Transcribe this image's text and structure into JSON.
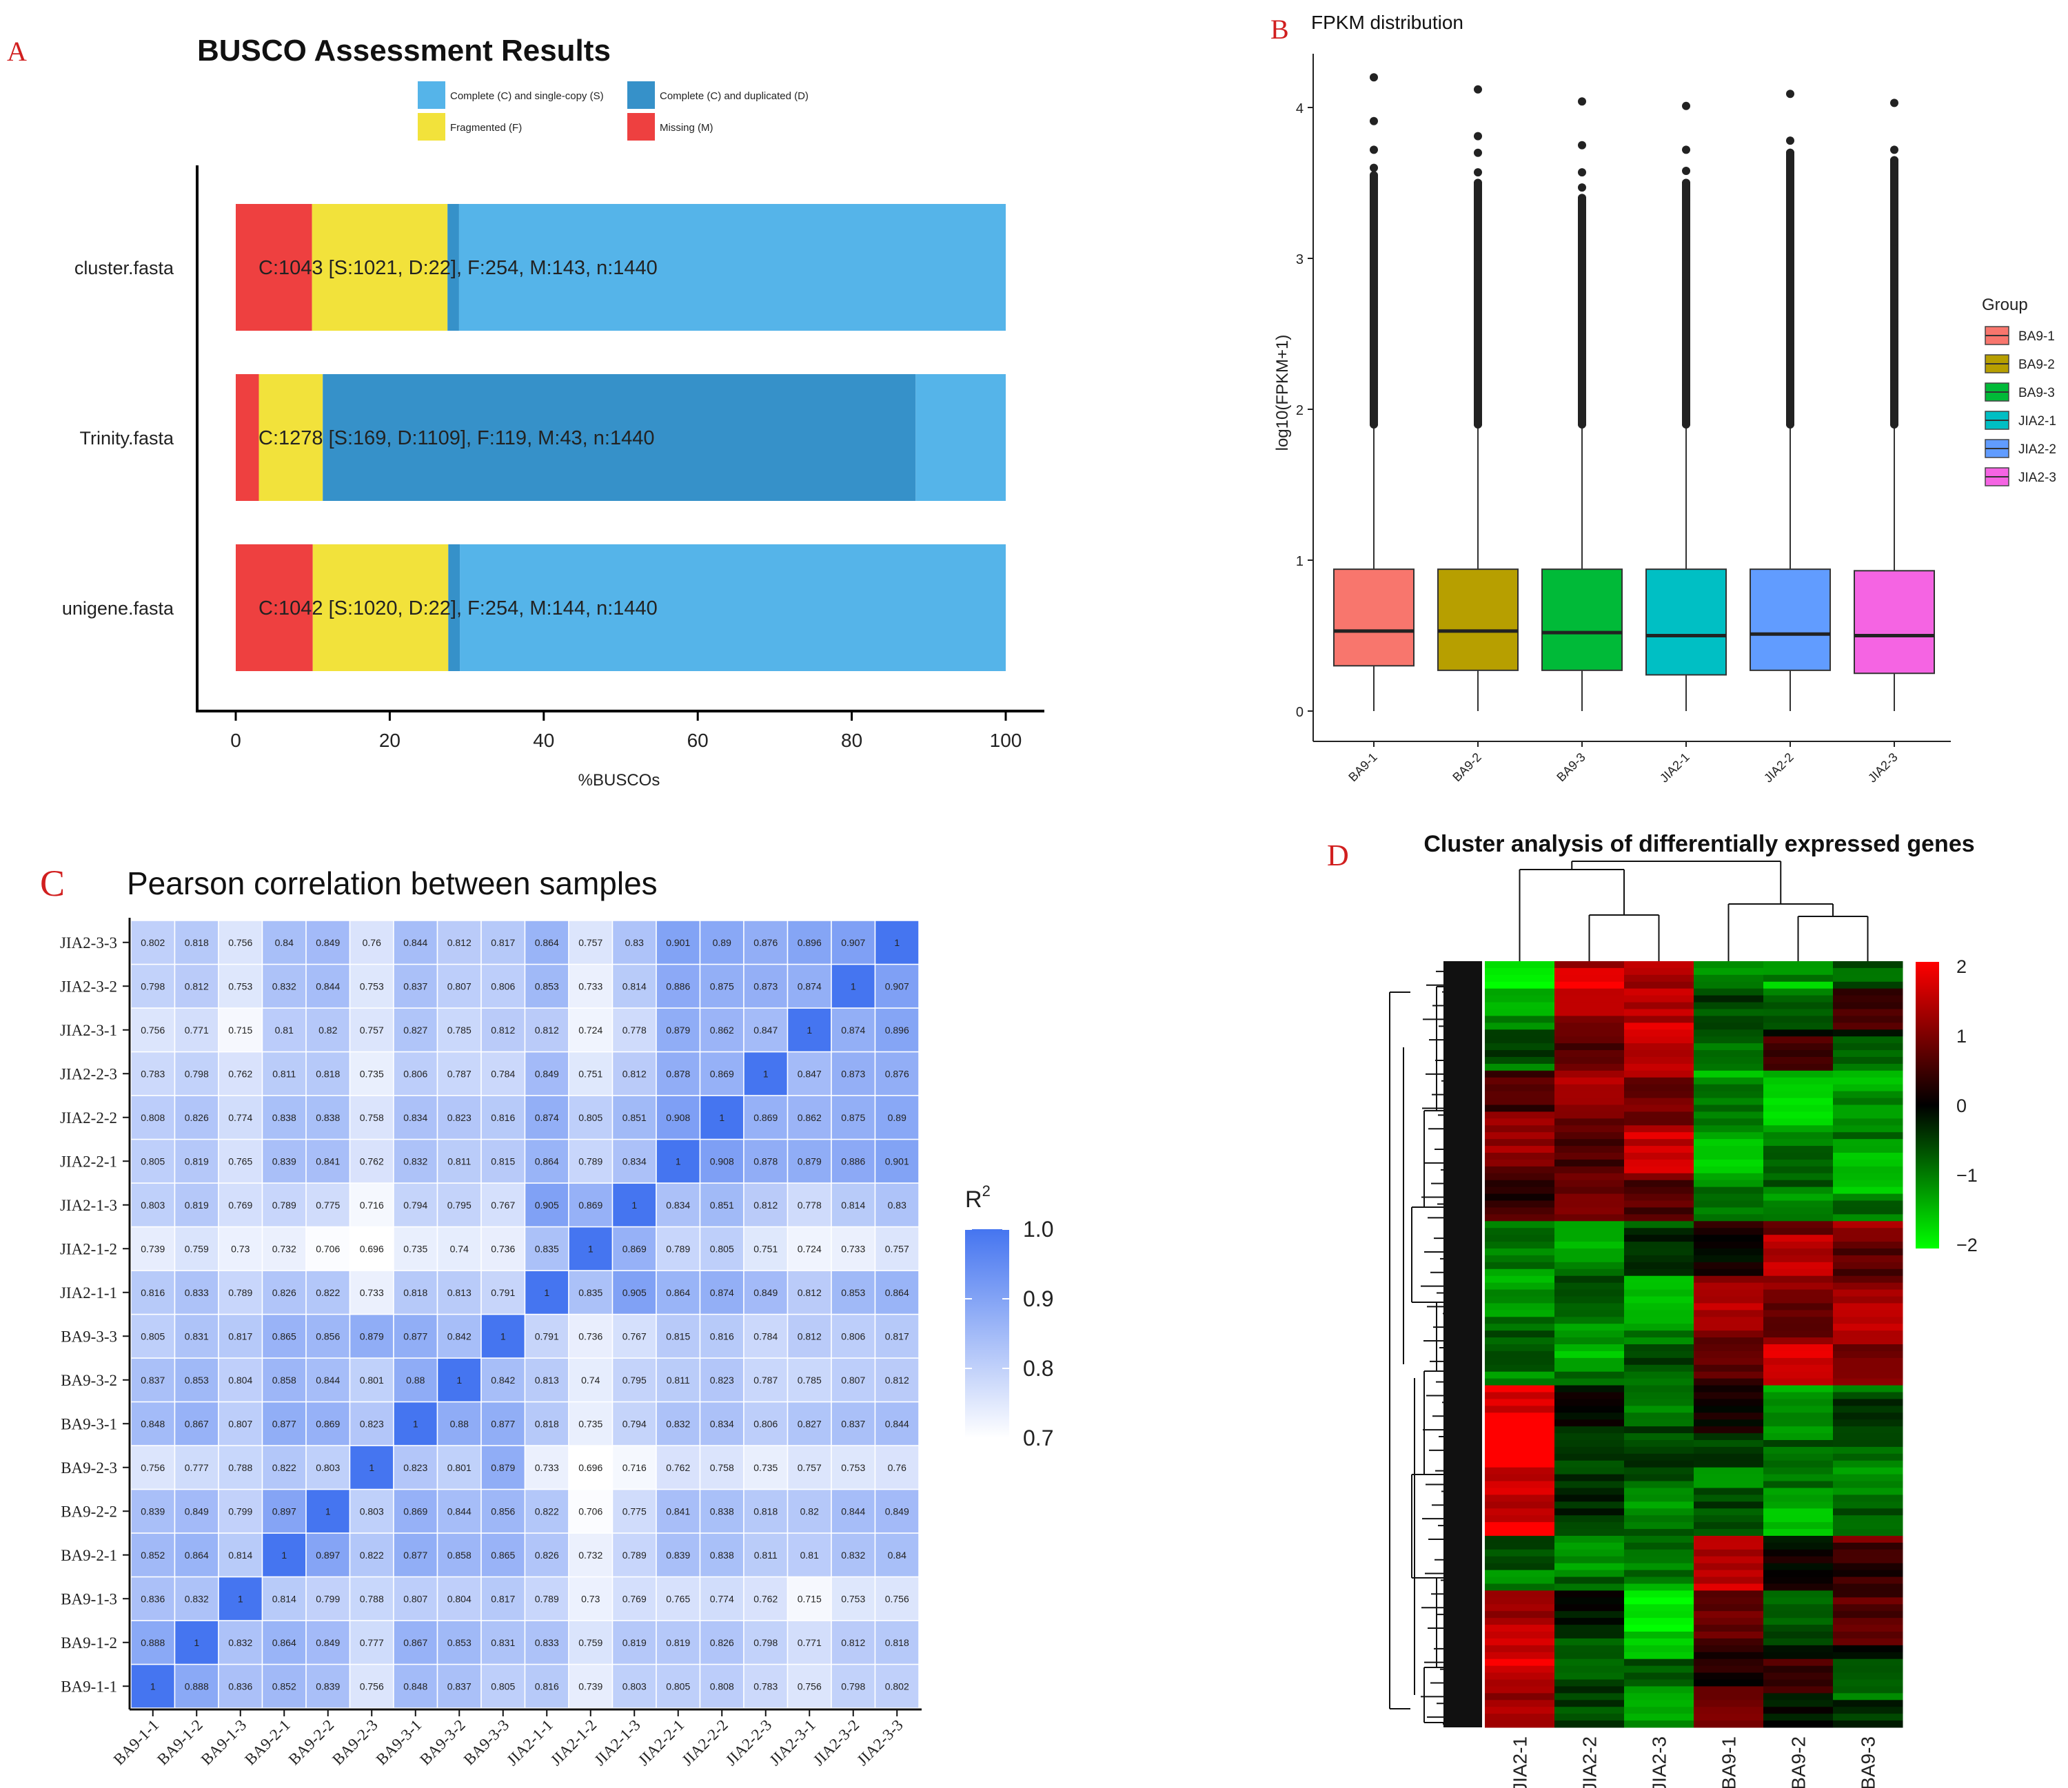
{
  "panels": {
    "A": "A",
    "B": "B",
    "C": "C",
    "D": "D"
  },
  "colors": {
    "panel_letter": "#d11f1f",
    "busco_single": "#55b4e9",
    "busco_duplicated": "#3691c9",
    "busco_fragmented": "#f2e23b",
    "busco_missing": "#ee4040",
    "group": [
      "#f8766d",
      "#b79f00",
      "#00ba38",
      "#00bfc4",
      "#619cff",
      "#f564e3"
    ],
    "corr_low": "#ffffff",
    "corr_high": "#4575f0",
    "heat_low": "#00ff00",
    "heat_mid": "#000000",
    "heat_high": "#ff0000"
  },
  "chart_data": [
    {
      "id": "A",
      "type": "bar",
      "stacked": true,
      "orientation": "horizontal",
      "title": "BUSCO Assessment Results",
      "xlabel": "%BUSCOs",
      "ylabel": "",
      "xlim": [
        0,
        100
      ],
      "xticks": [
        0,
        20,
        40,
        60,
        80,
        100
      ],
      "categories": [
        "cluster.fasta",
        "Trinity.fasta",
        "unigene.fasta"
      ],
      "series": [
        {
          "name": "Missing (M)",
          "values": [
            9.9,
            3.0,
            10.0
          ]
        },
        {
          "name": "Fragmented (F)",
          "values": [
            17.6,
            8.3,
            17.6
          ]
        },
        {
          "name": "Complete (C) and duplicated (D)",
          "values": [
            1.5,
            77.0,
            1.5
          ]
        },
        {
          "name": "Complete (C) and single-copy (S)",
          "values": [
            71.0,
            11.7,
            70.9
          ]
        }
      ],
      "legend_order": [
        "Complete (C) and single-copy (S)",
        "Complete (C) and duplicated (D)",
        "Fragmented (F)",
        "Missing (M)"
      ],
      "legend_position": "top",
      "bar_labels": [
        "C:1043 [S:1021, D:22], F:254, M:143, n:1440",
        "C:1278 [S:169, D:1109], F:119, M:43, n:1440",
        "C:1042 [S:1020, D:22], F:254, M:144, n:1440"
      ]
    },
    {
      "id": "B",
      "type": "boxplot",
      "title": "FPKM distribution",
      "xlabel": "",
      "ylabel": "log10(FPKM+1)",
      "ylim": [
        0,
        4.3
      ],
      "yticks": [
        0,
        1,
        2,
        3,
        4
      ],
      "legend_title": "Group",
      "legend_position": "right",
      "categories": [
        "BA9-1",
        "BA9-2",
        "BA9-3",
        "JIA2-1",
        "JIA2-2",
        "JIA2-3"
      ],
      "boxes": [
        {
          "q1": 0.3,
          "median": 0.53,
          "q3": 0.94,
          "whisker_low": 0,
          "whisker_high": 1.9,
          "outliers_max": 3.55,
          "outliers_sparse": [
            3.6,
            3.72,
            3.91,
            4.2
          ]
        },
        {
          "q1": 0.27,
          "median": 0.53,
          "q3": 0.94,
          "whisker_low": 0,
          "whisker_high": 1.9,
          "outliers_max": 3.5,
          "outliers_sparse": [
            3.57,
            3.7,
            3.81,
            4.12
          ]
        },
        {
          "q1": 0.27,
          "median": 0.52,
          "q3": 0.94,
          "whisker_low": 0,
          "whisker_high": 1.9,
          "outliers_max": 3.4,
          "outliers_sparse": [
            3.47,
            3.57,
            3.75,
            4.04
          ]
        },
        {
          "q1": 0.24,
          "median": 0.5,
          "q3": 0.94,
          "whisker_low": 0,
          "whisker_high": 1.9,
          "outliers_max": 3.5,
          "outliers_sparse": [
            3.58,
            3.72,
            4.01
          ]
        },
        {
          "q1": 0.27,
          "median": 0.51,
          "q3": 0.94,
          "whisker_low": 0,
          "whisker_high": 1.9,
          "outliers_max": 3.7,
          "outliers_sparse": [
            3.78,
            4.09
          ]
        },
        {
          "q1": 0.25,
          "median": 0.5,
          "q3": 0.93,
          "whisker_low": 0,
          "whisker_high": 1.9,
          "outliers_max": 3.65,
          "outliers_sparse": [
            3.72,
            4.03
          ]
        }
      ]
    },
    {
      "id": "C",
      "type": "heatmap",
      "title": "Pearson correlation between samples",
      "legend_title": "R",
      "legend_title_sup": "2",
      "legend_ticks": [
        "1.0",
        "0.9",
        "0.8",
        "0.7"
      ],
      "value_range": [
        0.7,
        1.0
      ],
      "samples": [
        "BA9-1-1",
        "BA9-1-2",
        "BA9-1-3",
        "BA9-2-1",
        "BA9-2-2",
        "BA9-2-3",
        "BA9-3-1",
        "BA9-3-2",
        "BA9-3-3",
        "JIA2-1-1",
        "JIA2-1-2",
        "JIA2-1-3",
        "JIA2-2-1",
        "JIA2-2-2",
        "JIA2-2-3",
        "JIA2-3-1",
        "JIA2-3-2",
        "JIA2-3-3"
      ],
      "matrix": [
        [
          "1",
          "0.888",
          "0.836",
          "0.852",
          "0.839",
          "0.756",
          "0.848",
          "0.837",
          "0.805",
          "0.816",
          "0.739",
          "0.803",
          "0.805",
          "0.808",
          "0.783",
          "0.756",
          "0.798",
          "0.802"
        ],
        [
          "0.888",
          "1",
          "0.832",
          "0.864",
          "0.849",
          "0.777",
          "0.867",
          "0.853",
          "0.831",
          "0.833",
          "0.759",
          "0.819",
          "0.819",
          "0.826",
          "0.798",
          "0.771",
          "0.812",
          "0.818"
        ],
        [
          "0.836",
          "0.832",
          "1",
          "0.814",
          "0.799",
          "0.788",
          "0.807",
          "0.804",
          "0.817",
          "0.789",
          "0.73",
          "0.769",
          "0.765",
          "0.774",
          "0.762",
          "0.715",
          "0.753",
          "0.756"
        ],
        [
          "0.852",
          "0.864",
          "0.814",
          "1",
          "0.897",
          "0.822",
          "0.877",
          "0.858",
          "0.865",
          "0.826",
          "0.732",
          "0.789",
          "0.839",
          "0.838",
          "0.811",
          "0.81",
          "0.832",
          "0.84"
        ],
        [
          "0.839",
          "0.849",
          "0.799",
          "0.897",
          "1",
          "0.803",
          "0.869",
          "0.844",
          "0.856",
          "0.822",
          "0.706",
          "0.775",
          "0.841",
          "0.838",
          "0.818",
          "0.82",
          "0.844",
          "0.849"
        ],
        [
          "0.756",
          "0.777",
          "0.788",
          "0.822",
          "0.803",
          "1",
          "0.823",
          "0.801",
          "0.879",
          "0.733",
          "0.696",
          "0.716",
          "0.762",
          "0.758",
          "0.735",
          "0.757",
          "0.753",
          "0.76"
        ],
        [
          "0.848",
          "0.867",
          "0.807",
          "0.877",
          "0.869",
          "0.823",
          "1",
          "0.88",
          "0.877",
          "0.818",
          "0.735",
          "0.794",
          "0.832",
          "0.834",
          "0.806",
          "0.827",
          "0.837",
          "0.844"
        ],
        [
          "0.837",
          "0.853",
          "0.804",
          "0.858",
          "0.844",
          "0.801",
          "0.88",
          "1",
          "0.842",
          "0.813",
          "0.74",
          "0.795",
          "0.811",
          "0.823",
          "0.787",
          "0.785",
          "0.807",
          "0.812"
        ],
        [
          "0.805",
          "0.831",
          "0.817",
          "0.865",
          "0.856",
          "0.879",
          "0.877",
          "0.842",
          "1",
          "0.791",
          "0.736",
          "0.767",
          "0.815",
          "0.816",
          "0.784",
          "0.812",
          "0.806",
          "0.817"
        ],
        [
          "0.816",
          "0.833",
          "0.789",
          "0.826",
          "0.822",
          "0.733",
          "0.818",
          "0.813",
          "0.791",
          "1",
          "0.835",
          "0.905",
          "0.864",
          "0.874",
          "0.849",
          "0.812",
          "0.853",
          "0.864"
        ],
        [
          "0.739",
          "0.759",
          "0.73",
          "0.732",
          "0.706",
          "0.696",
          "0.735",
          "0.74",
          "0.736",
          "0.835",
          "1",
          "0.869",
          "0.789",
          "0.805",
          "0.751",
          "0.724",
          "0.733",
          "0.757"
        ],
        [
          "0.803",
          "0.819",
          "0.769",
          "0.789",
          "0.775",
          "0.716",
          "0.794",
          "0.795",
          "0.767",
          "0.905",
          "0.869",
          "1",
          "0.834",
          "0.851",
          "0.812",
          "0.778",
          "0.814",
          "0.83"
        ],
        [
          "0.805",
          "0.819",
          "0.765",
          "0.839",
          "0.841",
          "0.762",
          "0.832",
          "0.811",
          "0.815",
          "0.864",
          "0.789",
          "0.834",
          "1",
          "0.908",
          "0.878",
          "0.879",
          "0.886",
          "0.901"
        ],
        [
          "0.808",
          "0.826",
          "0.774",
          "0.838",
          "0.838",
          "0.758",
          "0.834",
          "0.823",
          "0.816",
          "0.874",
          "0.805",
          "0.851",
          "0.908",
          "1",
          "0.869",
          "0.862",
          "0.875",
          "0.89"
        ],
        [
          "0.783",
          "0.798",
          "0.762",
          "0.811",
          "0.818",
          "0.735",
          "0.806",
          "0.787",
          "0.784",
          "0.849",
          "0.751",
          "0.812",
          "0.878",
          "0.869",
          "1",
          "0.847",
          "0.873",
          "0.876"
        ],
        [
          "0.756",
          "0.771",
          "0.715",
          "0.81",
          "0.82",
          "0.757",
          "0.827",
          "0.785",
          "0.812",
          "0.812",
          "0.724",
          "0.778",
          "0.879",
          "0.862",
          "0.847",
          "1",
          "0.874",
          "0.896"
        ],
        [
          "0.798",
          "0.812",
          "0.753",
          "0.832",
          "0.844",
          "0.753",
          "0.837",
          "0.807",
          "0.806",
          "0.853",
          "0.733",
          "0.814",
          "0.886",
          "0.875",
          "0.873",
          "0.874",
          "1",
          "0.907"
        ],
        [
          "0.802",
          "0.818",
          "0.756",
          "0.84",
          "0.849",
          "0.76",
          "0.844",
          "0.812",
          "0.817",
          "0.864",
          "0.757",
          "0.83",
          "0.901",
          "0.89",
          "0.876",
          "0.896",
          "0.907",
          "1"
        ]
      ]
    },
    {
      "id": "D",
      "type": "heatmap",
      "title": "Cluster analysis of differentially expressed genes",
      "columns": [
        "JIA2-1",
        "JIA2-2",
        "JIA2-3",
        "BA9-1",
        "BA9-2",
        "BA9-3"
      ],
      "value_range": [
        -2,
        2
      ],
      "legend_ticks": [
        "2",
        "1",
        "0",
        "−1",
        "−2"
      ],
      "column_dendrogram": "((JIA2-1,(JIA2-2,JIA2-3)),((BA9-1),(BA9-2,BA9-3)))",
      "row_blocks": [
        {
          "rows": 4,
          "values": [
            -1.6,
            1.6,
            1.3,
            -1.0,
            -1.3,
            -0.4
          ]
        },
        {
          "rows": 6,
          "values": [
            -1.2,
            1.2,
            1.7,
            -0.8,
            -0.6,
            0.3
          ]
        },
        {
          "rows": 6,
          "values": [
            -0.8,
            0.9,
            1.3,
            -0.5,
            0.2,
            -0.6
          ]
        },
        {
          "rows": 8,
          "values": [
            0.8,
            1.0,
            1.2,
            -1.3,
            -1.6,
            -1.4
          ]
        },
        {
          "rows": 8,
          "values": [
            0.9,
            0.9,
            1.3,
            -1.3,
            -1.2,
            -1.2
          ]
        },
        {
          "rows": 6,
          "values": [
            0.6,
            0.6,
            0.9,
            -1.2,
            -0.9,
            -1.2
          ]
        },
        {
          "rows": 8,
          "values": [
            -1.2,
            -1.0,
            -0.5,
            0.3,
            1.2,
            0.9
          ]
        },
        {
          "rows": 10,
          "values": [
            -1.0,
            -1.0,
            -1.2,
            1.2,
            1.0,
            1.1
          ]
        },
        {
          "rows": 6,
          "values": [
            -0.9,
            -1.2,
            -0.9,
            0.9,
            1.5,
            1.2
          ]
        },
        {
          "rows": 12,
          "values": [
            2.0,
            -0.3,
            -0.8,
            -0.2,
            -1.0,
            -0.7
          ]
        },
        {
          "rows": 10,
          "values": [
            1.8,
            -0.6,
            -0.8,
            -0.8,
            -1.2,
            -0.9
          ]
        },
        {
          "rows": 8,
          "values": [
            -0.8,
            -1.0,
            -1.2,
            1.6,
            -0.2,
            0.6
          ]
        },
        {
          "rows": 10,
          "values": [
            1.4,
            -0.3,
            -1.7,
            0.6,
            -0.4,
            0.4
          ]
        },
        {
          "rows": 10,
          "values": [
            1.5,
            -0.8,
            -1.0,
            0.5,
            0.2,
            -0.6
          ]
        }
      ]
    }
  ]
}
